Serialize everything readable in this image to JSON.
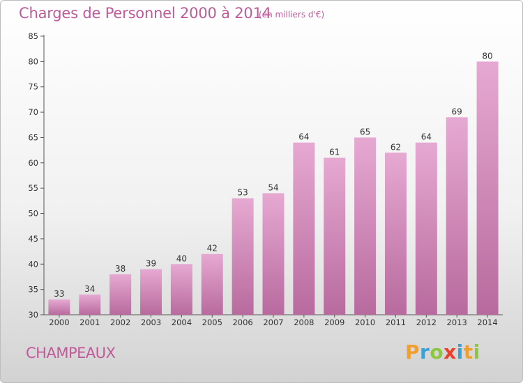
{
  "header": {
    "title": "Charges de Personnel 2000 à 2014",
    "subtitle": "(en milliers d'€)"
  },
  "footer": {
    "commune": "CHAMPEAUX",
    "logo_letters": [
      "P",
      "r",
      "o",
      "x",
      "i",
      "t",
      "i"
    ],
    "logo_colors": [
      "#f0a030",
      "#3aa0d8",
      "#8dc63f",
      "#e8402c",
      "#3aa0d8",
      "#f0a030",
      "#8dc63f"
    ]
  },
  "colors": {
    "title": "#c05a9a",
    "bar_light": "#e6a9d2",
    "bar_dark": "#b86a9e",
    "axis": "#555555",
    "grid": "#d9d9d9"
  },
  "chart_data": {
    "type": "bar",
    "title": "Charges de Personnel 2000 à 2014",
    "subtitle": "(en milliers d'€)",
    "categories": [
      "2000",
      "2001",
      "2002",
      "2003",
      "2004",
      "2005",
      "2006",
      "2007",
      "2008",
      "2009",
      "2010",
      "2011",
      "2012",
      "2013",
      "2014"
    ],
    "values": [
      33,
      34,
      38,
      39,
      40,
      42,
      53,
      54,
      64,
      61,
      65,
      62,
      64,
      69,
      80
    ],
    "ylim": [
      30,
      85
    ],
    "yticks": [
      30,
      35,
      40,
      45,
      50,
      55,
      60,
      65,
      70,
      75,
      80,
      85
    ],
    "grid": false,
    "data_labels": true
  }
}
